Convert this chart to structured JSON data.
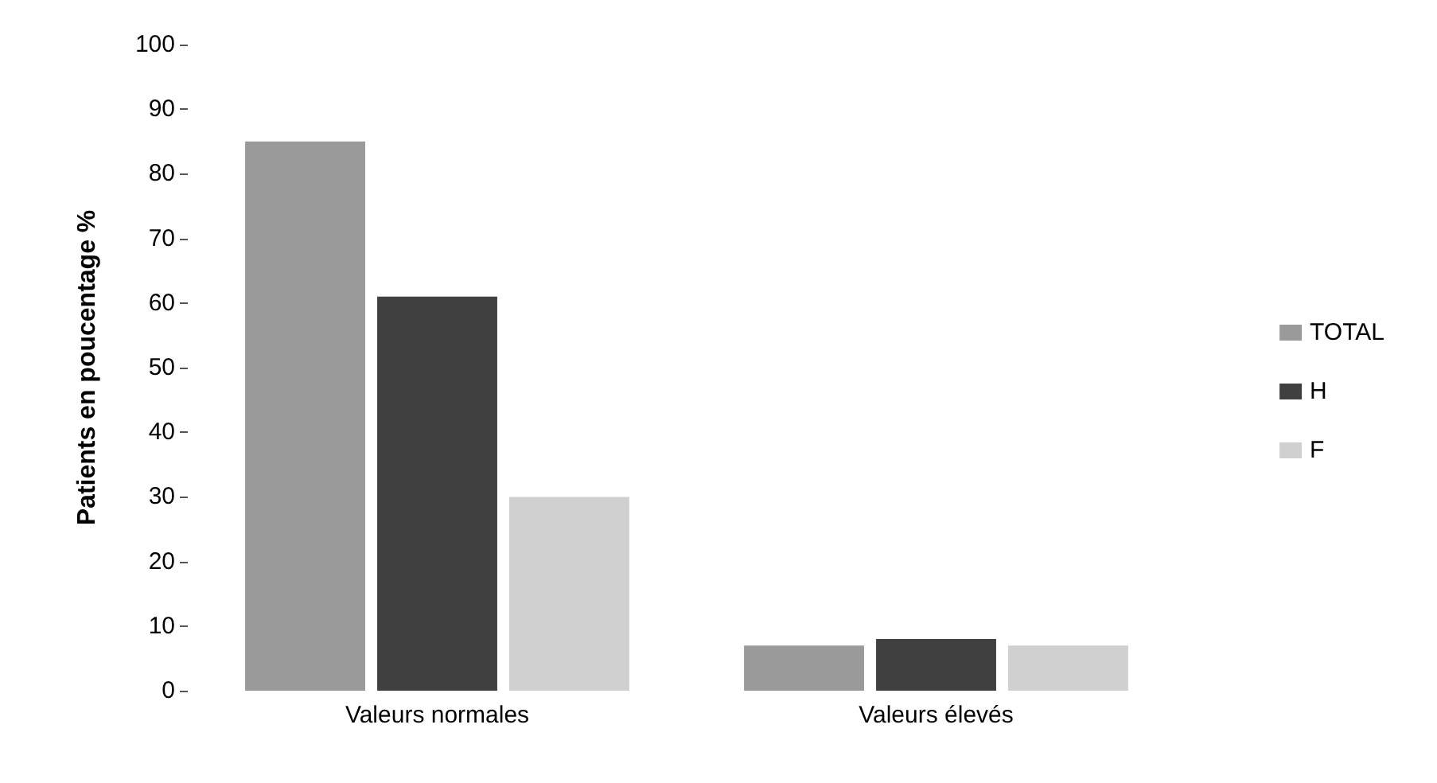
{
  "chart_data": {
    "type": "bar",
    "ylabel": "Patients en poucentage %",
    "categories": [
      "Valeurs normales",
      "Valeurs élevés"
    ],
    "series": [
      {
        "name": "TOTAL",
        "color": "#9a9a9a",
        "values": [
          85,
          7
        ]
      },
      {
        "name": "H",
        "color": "#404040",
        "values": [
          61,
          8
        ]
      },
      {
        "name": "F",
        "color": "#d0d0d0",
        "values": [
          30,
          7
        ]
      }
    ],
    "ylim": [
      0,
      100
    ],
    "yticks": [
      0,
      10,
      20,
      30,
      40,
      50,
      60,
      70,
      80,
      90,
      100
    ],
    "grid": false,
    "legend": "right"
  }
}
